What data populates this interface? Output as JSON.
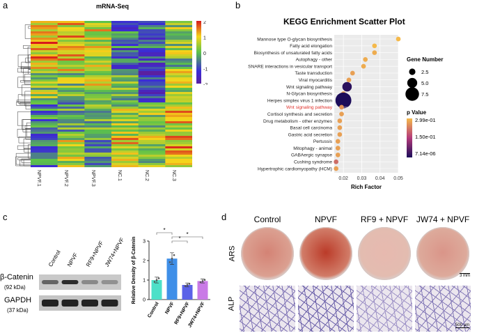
{
  "panel_a": {
    "letter": "a",
    "title": "mRNA-Seq",
    "columns": [
      "NPVF.1",
      "NPVF.2",
      "NPVF.3",
      "NC.1",
      "NC.2",
      "NC.3"
    ],
    "colorbar_ticks": [
      "2",
      "1",
      "0",
      "-1",
      "-2"
    ],
    "colors": {
      "high": "#d7191c",
      "mid": "#f5d61b",
      "zero": "#5cc24a",
      "low": "#3a2cd6",
      "lowest": "#5a1fa0"
    }
  },
  "panel_b": {
    "letter": "b",
    "chart_data": {
      "type": "scatter",
      "title": "KEGG Enrichment Scatter Plot",
      "xlabel": "Rich Factor",
      "xlim": [
        0.015,
        0.05
      ],
      "xticks": [
        "0.02",
        "0.03",
        "0.04",
        "0.05"
      ],
      "xtick_values": [
        0.02,
        0.03,
        0.04,
        0.05
      ],
      "categories": [
        "Mannose type O-glycan biosynthesis",
        "Fatty acid elongation",
        "Biosynthesis of unsaturated fatty acids",
        "Autophagy - other",
        "SNARE interactions in vesicular transport",
        "Taste transduction",
        "Viral myocarditis",
        "Wnt signaling pathway",
        "N-Glycan biosynthesis",
        "Herpes simplex virus 1 infection",
        "Wnt signaling pathway",
        "Cortisol synthesis and secretion",
        "Drug metabolism - other enzymes",
        "Basal cell carcinoma",
        "Gastric acid secretion",
        "Pertussis",
        "Mitophagy - animal",
        "GABAergic synapse",
        "Cushing syndrome",
        "Hypertrophic cardiomyopathy (HCM)"
      ],
      "highlighted_index": 10,
      "rich_factor": [
        0.05,
        0.037,
        0.037,
        0.032,
        0.031,
        0.025,
        0.023,
        0.022,
        0.02,
        0.02,
        0.019,
        0.019,
        0.018,
        0.018,
        0.018,
        0.017,
        0.017,
        0.017,
        0.016,
        0.016
      ],
      "gene_number": [
        1,
        1,
        1,
        1,
        1,
        1,
        1,
        4,
        1,
        8,
        1,
        1,
        1,
        1,
        1,
        1,
        1,
        1,
        1,
        1
      ],
      "p_value_scale": [
        0.0,
        0.0,
        0.05,
        0.05,
        0.05,
        0.1,
        0.1,
        0.95,
        0.1,
        1.0,
        0.15,
        0.1,
        0.1,
        0.1,
        0.1,
        0.1,
        0.1,
        0.1,
        0.3,
        0.1
      ],
      "legend_size_title": "Gene Number",
      "legend_size_labels": [
        "2.5",
        "5.0",
        "7.5"
      ],
      "legend_size_values": [
        2.5,
        5.0,
        7.5
      ],
      "legend_color_title": "p Value",
      "legend_color_labels": [
        "2.99e-01",
        "1.50e-01",
        "7.14e-06"
      ],
      "highlight_color": "#e0302a"
    }
  },
  "panel_c": {
    "letter": "c",
    "lanes": [
      "Control",
      "NPVF",
      "RF9+NPVF",
      "JW74+NPVF"
    ],
    "blot_labels": {
      "beta_catenin": "β-Catenin",
      "beta_kda": "(92 kDa)",
      "gapdh": "GAPDH",
      "gapdh_kda": "(37 kDa)"
    },
    "band_intensity": {
      "beta_catenin": [
        0.55,
        0.85,
        0.35,
        0.3
      ],
      "gapdh": [
        0.9,
        0.9,
        0.9,
        0.9
      ]
    },
    "chart_data": {
      "type": "bar",
      "ylabel": "Relative Density of β-Catenin",
      "categories": [
        "Control",
        "NPVF",
        "RF9+NPVF",
        "JW74+NPVF"
      ],
      "values": [
        1.0,
        2.1,
        0.75,
        0.95
      ],
      "errors": [
        0.15,
        0.3,
        0.1,
        0.1
      ],
      "ylim": [
        0,
        3
      ],
      "yticks": [
        "0",
        "1",
        "2",
        "3"
      ],
      "ytick_values": [
        0,
        1,
        2,
        3
      ],
      "colors": [
        "#4de0c8",
        "#3f8fe8",
        "#5b62e8",
        "#c97ae6"
      ],
      "significance": [
        "*",
        "*",
        "*"
      ]
    }
  },
  "panel_d": {
    "letter": "d",
    "groups": [
      "Control",
      "NPVF",
      "RF9 + NPVF",
      "JW74 + NPVF"
    ],
    "rows": [
      "ARS",
      "ALP"
    ],
    "ars_stain": [
      0.55,
      0.95,
      0.25,
      0.45
    ],
    "alp_stain": [
      0.6,
      0.75,
      0.35,
      0.55
    ],
    "scale_bar_ars": "3 mm",
    "scale_bar_alp": "500 μm"
  }
}
